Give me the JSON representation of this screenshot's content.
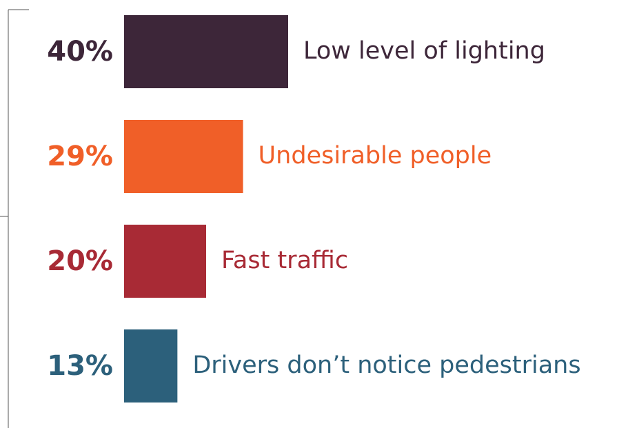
{
  "chart_data": {
    "type": "bar",
    "orientation": "horizontal",
    "categories": [
      "Low level of lighting",
      "Undesirable people",
      "Fast traffic",
      "Drivers don’t notice pedestrians"
    ],
    "values": [
      40,
      29,
      20,
      13
    ],
    "value_labels": [
      "40%",
      "29%",
      "20%",
      "13%"
    ],
    "colors": [
      "#3d2639",
      "#f05f28",
      "#a82a35",
      "#2c607b"
    ]
  }
}
